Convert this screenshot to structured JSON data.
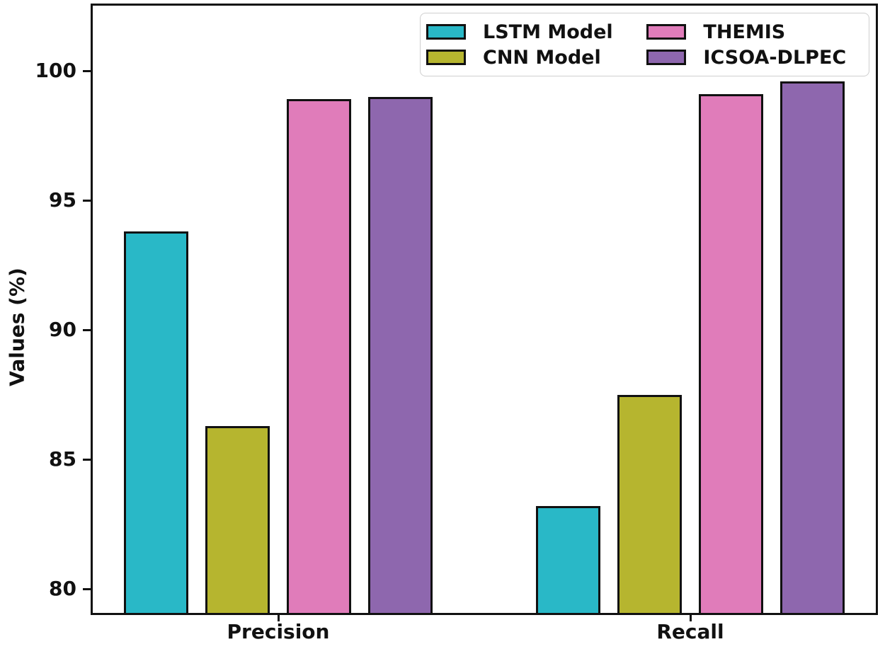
{
  "chart_data": {
    "type": "bar",
    "title": "",
    "xlabel": "",
    "ylabel": "Values (%)",
    "categories": [
      "Precision",
      "Recall"
    ],
    "series": [
      {
        "name": "LSTM Model",
        "color": "#29b8c7",
        "values": [
          93.8,
          83.2
        ]
      },
      {
        "name": "CNN Model",
        "color": "#b6b52f",
        "values": [
          86.3,
          87.5
        ]
      },
      {
        "name": "THEMIS",
        "color": "#e07cba",
        "values": [
          98.9,
          99.1
        ]
      },
      {
        "name": "ICSOA-DLPEC",
        "color": "#8e67ae",
        "values": [
          99.0,
          99.6
        ]
      }
    ],
    "yticks": [
      80,
      85,
      90,
      95,
      100
    ],
    "ylim": [
      79.0,
      102.6
    ],
    "grid": false,
    "legend_position": "upper right, 2 columns",
    "bar_edge_color": "#111111",
    "axis_color": "#111111",
    "background_color": "#ffffff"
  }
}
